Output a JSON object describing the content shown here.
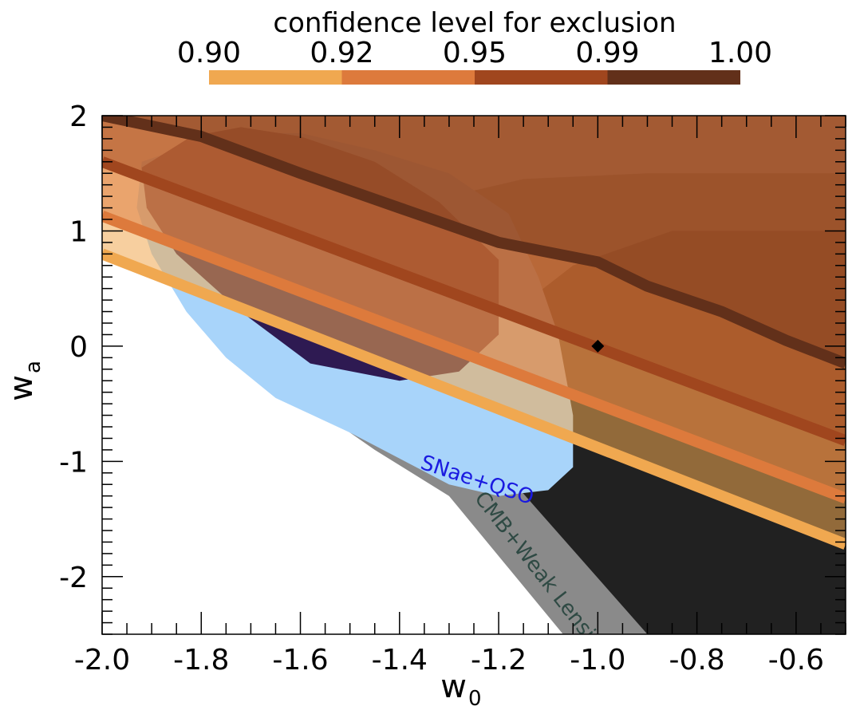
{
  "chart_data": {
    "type": "area",
    "xlabel_main": "w",
    "xlabel_sub": "0",
    "ylabel_main": "w",
    "ylabel_sub": "a",
    "xlim": [
      -2.0,
      -0.5
    ],
    "ylim": [
      -2.5,
      2.0
    ],
    "xticks": [
      {
        "v": -2.0,
        "label": "-2.0"
      },
      {
        "v": -1.8,
        "label": "-1.8"
      },
      {
        "v": -1.6,
        "label": "-1.6"
      },
      {
        "v": -1.4,
        "label": "-1.4"
      },
      {
        "v": -1.2,
        "label": "-1.2"
      },
      {
        "v": -1.0,
        "label": "-1.0"
      },
      {
        "v": -0.8,
        "label": "-0.8"
      },
      {
        "v": -0.6,
        "label": "-0.6"
      }
    ],
    "yticks": [
      {
        "v": 2,
        "label": "2"
      },
      {
        "v": 1,
        "label": "1"
      },
      {
        "v": 0,
        "label": "0"
      },
      {
        "v": -1,
        "label": "-1"
      },
      {
        "v": -2,
        "label": "-2"
      }
    ],
    "colorbar": {
      "title": "confidence level for exclusion",
      "labels": [
        "0.90",
        "0.92",
        "0.95",
        "0.99",
        "1.00"
      ],
      "colors": [
        "#f0a850",
        "#dd7a3c",
        "#a0461e",
        "#62301a"
      ]
    },
    "annotations": [
      {
        "text": "SNae+QSO",
        "x": -1.36,
        "y": -1.06,
        "angle": 18,
        "color": "#1a1ae0"
      },
      {
        "text": "CMB+Weak Lensing",
        "x": -1.25,
        "y": -1.32,
        "angle": 52,
        "color": "#2f4a44"
      }
    ],
    "marker": {
      "name": "fiducial",
      "x": -1.0,
      "y": 0.0
    },
    "regions": [
      {
        "name": "cmb-wl-outer",
        "color": "#8a8a8a",
        "opacity": 1,
        "points": [
          [
            -1.62,
            -0.2
          ],
          [
            -1.58,
            0.4
          ],
          [
            -1.47,
            0.9
          ],
          [
            -1.3,
            1.3
          ],
          [
            -1.15,
            1.45
          ],
          [
            -0.9,
            1.5
          ],
          [
            -0.5,
            1.5
          ],
          [
            -0.5,
            -2.5
          ],
          [
            -1.07,
            -2.5
          ],
          [
            -1.3,
            -1.3
          ],
          [
            -1.45,
            -0.9
          ],
          [
            -1.55,
            -0.6
          ]
        ]
      },
      {
        "name": "cmb-wl-inner",
        "color": "#212121",
        "opacity": 1,
        "points": [
          [
            -1.35,
            -0.5
          ],
          [
            -1.2,
            0.2
          ],
          [
            -1.05,
            0.7
          ],
          [
            -0.85,
            1.0
          ],
          [
            -0.5,
            1.0
          ],
          [
            -0.5,
            -2.5
          ],
          [
            -0.9,
            -2.5
          ],
          [
            -1.15,
            -1.28
          ],
          [
            -1.3,
            -0.85
          ]
        ]
      },
      {
        "name": "snae-qso-outer",
        "color": "#a8d4fa",
        "opacity": 1,
        "points": [
          [
            -1.92,
            1.6
          ],
          [
            -1.75,
            1.85
          ],
          [
            -1.6,
            1.85
          ],
          [
            -1.45,
            1.7
          ],
          [
            -1.3,
            1.5
          ],
          [
            -1.18,
            1.15
          ],
          [
            -1.12,
            0.6
          ],
          [
            -1.08,
            0.1
          ],
          [
            -1.05,
            -0.6
          ],
          [
            -1.05,
            -1.05
          ],
          [
            -1.1,
            -1.25
          ],
          [
            -1.2,
            -1.3
          ],
          [
            -1.3,
            -1.2
          ],
          [
            -1.5,
            -0.75
          ],
          [
            -1.65,
            -0.45
          ],
          [
            -1.75,
            -0.1
          ],
          [
            -1.83,
            0.3
          ],
          [
            -1.9,
            0.8
          ],
          [
            -1.93,
            1.2
          ]
        ]
      },
      {
        "name": "snae-qso-inner",
        "color": "#2e1a52",
        "opacity": 1,
        "points": [
          [
            -1.92,
            1.55
          ],
          [
            -1.82,
            1.82
          ],
          [
            -1.72,
            1.9
          ],
          [
            -1.6,
            1.82
          ],
          [
            -1.45,
            1.6
          ],
          [
            -1.32,
            1.25
          ],
          [
            -1.2,
            0.75
          ],
          [
            -1.2,
            0.1
          ],
          [
            -1.28,
            -0.22
          ],
          [
            -1.4,
            -0.3
          ],
          [
            -1.58,
            -0.15
          ],
          [
            -1.72,
            0.3
          ],
          [
            -1.85,
            0.8
          ],
          [
            -1.91,
            1.2
          ]
        ]
      },
      {
        "name": "excl-0.90",
        "color": "#f0a850",
        "opacity": 0.55,
        "points": [
          [
            -2.0,
            0.8
          ],
          [
            -0.5,
            -1.72
          ],
          [
            -0.5,
            2.0
          ],
          [
            -2.0,
            2.0
          ]
        ]
      },
      {
        "name": "excl-0.92",
        "color": "#dd7a3c",
        "opacity": 0.5,
        "points": [
          [
            -2.0,
            1.13
          ],
          [
            -0.5,
            -1.32
          ],
          [
            -0.5,
            2.0
          ],
          [
            -2.0,
            2.0
          ]
        ]
      },
      {
        "name": "excl-0.95",
        "color": "#a0461e",
        "opacity": 0.5,
        "points": [
          [
            -2.0,
            1.6
          ],
          [
            -0.5,
            -0.82
          ],
          [
            -0.5,
            2.0
          ],
          [
            -2.0,
            2.0
          ]
        ]
      },
      {
        "name": "excl-0.99",
        "color": "#7a3a1c",
        "opacity": 0.45,
        "points": [
          [
            -2.0,
            2.0
          ],
          [
            -1.8,
            1.82
          ],
          [
            -1.6,
            1.5
          ],
          [
            -1.4,
            1.2
          ],
          [
            -1.2,
            0.9
          ],
          [
            -1.0,
            0.73
          ],
          [
            -0.9,
            0.52
          ],
          [
            -0.75,
            0.3
          ],
          [
            -0.62,
            0.05
          ],
          [
            -0.5,
            -0.15
          ],
          [
            -0.5,
            2.0
          ]
        ]
      }
    ],
    "lines": [
      {
        "name": "edge-0.90",
        "color": "#f0a850",
        "width": 14,
        "points": [
          [
            -2.0,
            0.8
          ],
          [
            -0.5,
            -1.72
          ]
        ]
      },
      {
        "name": "edge-0.92",
        "color": "#dd7a3c",
        "width": 14,
        "points": [
          [
            -2.0,
            1.13
          ],
          [
            -0.5,
            -1.32
          ]
        ]
      },
      {
        "name": "edge-0.95",
        "color": "#a0461e",
        "width": 14,
        "points": [
          [
            -2.0,
            1.6
          ],
          [
            -0.5,
            -0.82
          ]
        ]
      },
      {
        "name": "edge-0.99",
        "color": "#62301a",
        "width": 14,
        "points": [
          [
            -2.0,
            2.0
          ],
          [
            -1.8,
            1.82
          ],
          [
            -1.6,
            1.5
          ],
          [
            -1.4,
            1.2
          ],
          [
            -1.2,
            0.9
          ],
          [
            -1.0,
            0.73
          ],
          [
            -0.9,
            0.52
          ],
          [
            -0.75,
            0.3
          ],
          [
            -0.62,
            0.05
          ],
          [
            -0.5,
            -0.15
          ]
        ]
      }
    ]
  }
}
